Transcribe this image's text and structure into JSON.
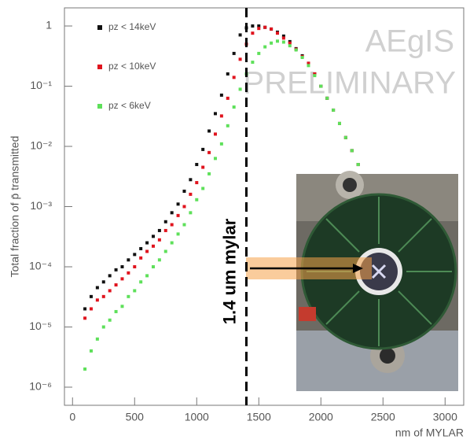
{
  "chart_data": {
    "type": "scatter",
    "ylabel": "Total fraction of p̄ transmitted",
    "xlabel": "nm of MYLAR",
    "log_y": true,
    "xlim": [
      -65,
      3150
    ],
    "ylim": [
      5e-07,
      2
    ],
    "xticks": [
      0,
      500,
      1000,
      1500,
      2000,
      2500,
      3000
    ],
    "yticks": [
      {
        "value": 1e-06,
        "label": "10⁻⁶"
      },
      {
        "value": 1e-05,
        "label": "10⁻⁵"
      },
      {
        "value": 0.0001,
        "label": "10⁻⁴"
      },
      {
        "value": 0.001,
        "label": "10⁻³"
      },
      {
        "value": 0.01,
        "label": "10⁻²"
      },
      {
        "value": 0.1,
        "label": "10⁻¹"
      },
      1
    ],
    "x": [
      100,
      150,
      200,
      250,
      300,
      350,
      400,
      450,
      500,
      550,
      600,
      650,
      700,
      750,
      800,
      850,
      900,
      950,
      1000,
      1050,
      1100,
      1150,
      1200,
      1250,
      1300,
      1350,
      1400,
      1450,
      1500,
      1550,
      1600,
      1650,
      1700,
      1750,
      1800,
      1850,
      1900,
      1950,
      2000,
      2050,
      2100,
      2150,
      2200,
      2250,
      2300
    ],
    "series": [
      {
        "name": "pz < 14keV",
        "color": "#111111",
        "values": [
          2e-05,
          3.2e-05,
          4.5e-05,
          5.6e-05,
          7.1e-05,
          8.9e-05,
          0.0001,
          0.00013,
          0.00016,
          0.0002,
          0.00025,
          0.00032,
          0.0004,
          0.00056,
          0.00079,
          0.0011,
          0.0018,
          0.0028,
          0.005,
          0.0089,
          0.018,
          0.035,
          0.071,
          0.16,
          0.35,
          0.71,
          0.93,
          1,
          1,
          0.95,
          0.89,
          0.79,
          0.68,
          0.55,
          0.42,
          0.32,
          0.24,
          0.16,
          0.1,
          0.063,
          0.04,
          0.024,
          0.014,
          0.0085,
          0.005
        ]
      },
      {
        "name": "pz < 10keV",
        "color": "#e0141e",
        "values": [
          1.4e-05,
          2e-05,
          2.8e-05,
          3.2e-05,
          4e-05,
          5e-05,
          6.3e-05,
          7.9e-05,
          0.0001,
          0.00014,
          0.00018,
          0.00022,
          0.00028,
          0.0004,
          0.0005,
          0.00071,
          0.001,
          0.0016,
          0.0025,
          0.0045,
          0.0079,
          0.016,
          0.032,
          0.063,
          0.14,
          0.28,
          0.5,
          0.76,
          0.91,
          0.95,
          0.89,
          0.76,
          0.63,
          0.52,
          0.41,
          0.31,
          0.24,
          0.16,
          0.1,
          0.063,
          0.04,
          0.024,
          0.014,
          0.0085,
          0.005
        ]
      },
      {
        "name": "pz < 6keV",
        "color": "#5ee05a",
        "values": [
          2e-06,
          4e-06,
          6.3e-06,
          1e-05,
          1.3e-05,
          1.8e-05,
          2.2e-05,
          3.2e-05,
          4e-05,
          5.6e-05,
          7.1e-05,
          0.0001,
          0.00013,
          0.00018,
          0.00025,
          0.00035,
          0.0005,
          0.00079,
          0.0013,
          0.002,
          0.0035,
          0.0063,
          0.011,
          0.022,
          0.045,
          0.089,
          0.16,
          0.25,
          0.35,
          0.45,
          0.52,
          0.56,
          0.54,
          0.47,
          0.4,
          0.3,
          0.22,
          0.15,
          0.1,
          0.063,
          0.04,
          0.024,
          0.014,
          0.0085,
          0.005
        ]
      }
    ],
    "reference_line": {
      "x": 1400,
      "label": "1.4 um mylar"
    },
    "watermark": [
      "AEgIS",
      "PRELIMINARY"
    ],
    "legend": "upper left"
  }
}
